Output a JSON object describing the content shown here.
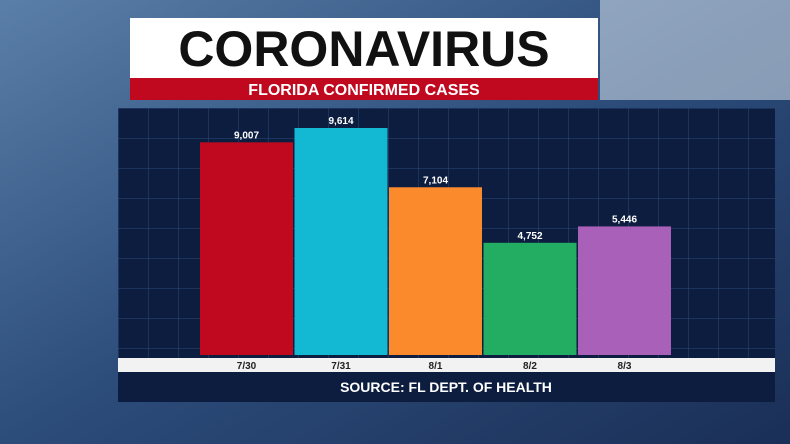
{
  "chart_data": {
    "type": "bar",
    "title": "CORONAVIRUS",
    "subtitle": "FLORIDA CONFIRMED CASES",
    "source": "SOURCE: FL DEPT. OF HEALTH",
    "categories": [
      "7/30",
      "7/31",
      "8/1",
      "8/2",
      "8/3"
    ],
    "values": [
      9007,
      9614,
      7104,
      4752,
      5446
    ],
    "value_labels": [
      "9,007",
      "9,614",
      "7,104",
      "4,752",
      "5,446"
    ],
    "colors": [
      "#c0091f",
      "#13b9d3",
      "#fb8a2d",
      "#22ad62",
      "#a860b8"
    ]
  }
}
